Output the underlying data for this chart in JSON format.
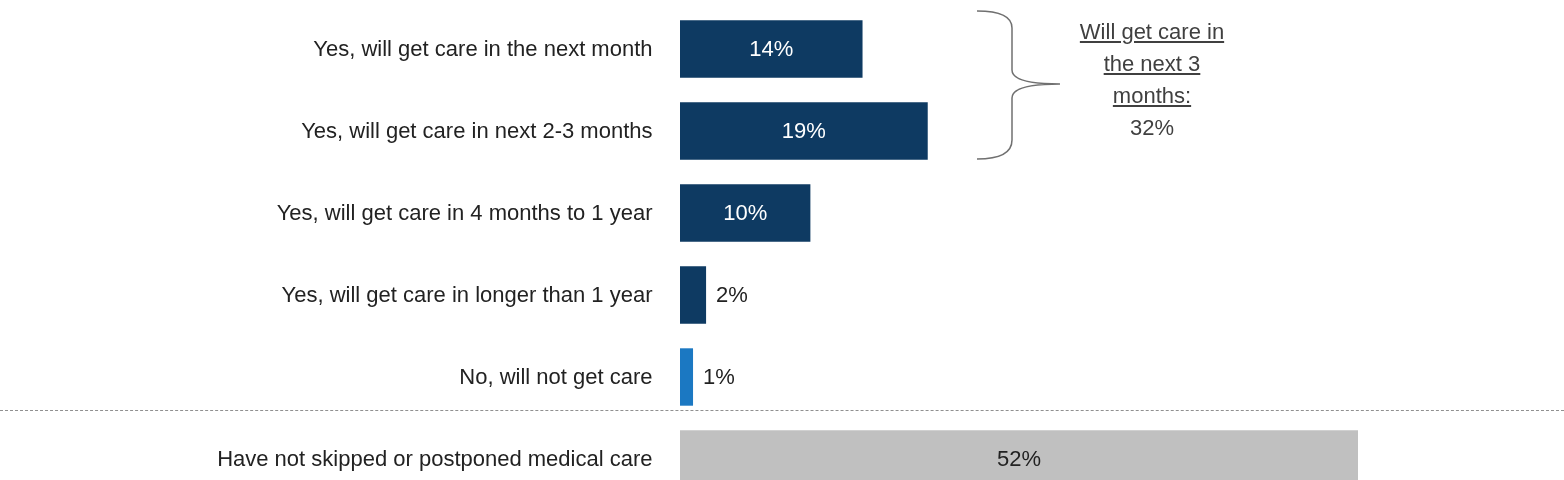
{
  "chart_data": {
    "type": "bar",
    "orientation": "horizontal",
    "categories": [
      "Yes, will get care in the next month",
      "Yes, will get care in next 2-3 months",
      "Yes, will get care in 4 months to 1 year",
      "Yes, will get care in longer than 1 year",
      "No, will not get care",
      "Have not skipped or postponed medical care"
    ],
    "values": [
      14,
      19,
      10,
      2,
      1,
      52
    ],
    "value_labels": [
      "14%",
      "19%",
      "10%",
      "2%",
      "1%",
      "52%"
    ],
    "colors": [
      "#0e3a62",
      "#0e3a62",
      "#0e3a62",
      "#0e3a62",
      "#1b78c2",
      "#c0c0c0"
    ],
    "annotations": [
      "Will get care in the next 3 months:",
      "32%"
    ]
  }
}
